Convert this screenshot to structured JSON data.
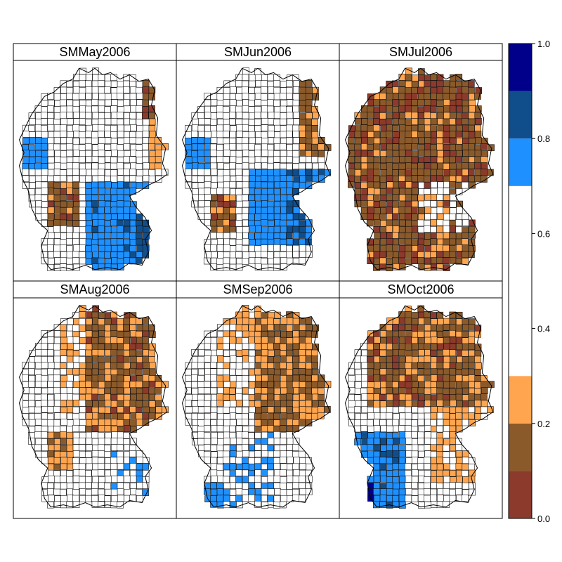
{
  "panels": [
    {
      "title": "SMMay2006",
      "scenario": "south-wet"
    },
    {
      "title": "SMJun2006",
      "scenario": "south-east-wet"
    },
    {
      "title": "SMJul2006",
      "scenario": "drought"
    },
    {
      "title": "SMAug2006",
      "scenario": "east-dry"
    },
    {
      "title": "SMSep2006",
      "scenario": "east-dry-light"
    },
    {
      "title": "SMOct2006",
      "scenario": "north-dry-southwest-wet"
    }
  ],
  "colorbar": {
    "ticks": [
      "0.0",
      "0.2",
      "0.4",
      "0.6",
      "0.8",
      "1.0"
    ],
    "bins": [
      {
        "from": 0.0,
        "to": 0.1,
        "color": "#8B3A2B"
      },
      {
        "from": 0.1,
        "to": 0.2,
        "color": "#8B5A2B"
      },
      {
        "from": 0.2,
        "to": 0.3,
        "color": "#FFA54F"
      },
      {
        "from": 0.3,
        "to": 0.7,
        "color": "#FFFFFF"
      },
      {
        "from": 0.7,
        "to": 0.8,
        "color": "#1E90FF"
      },
      {
        "from": 0.8,
        "to": 0.9,
        "color": "#104E8B"
      },
      {
        "from": 0.9,
        "to": 1.0,
        "color": "#00008B"
      }
    ]
  }
}
